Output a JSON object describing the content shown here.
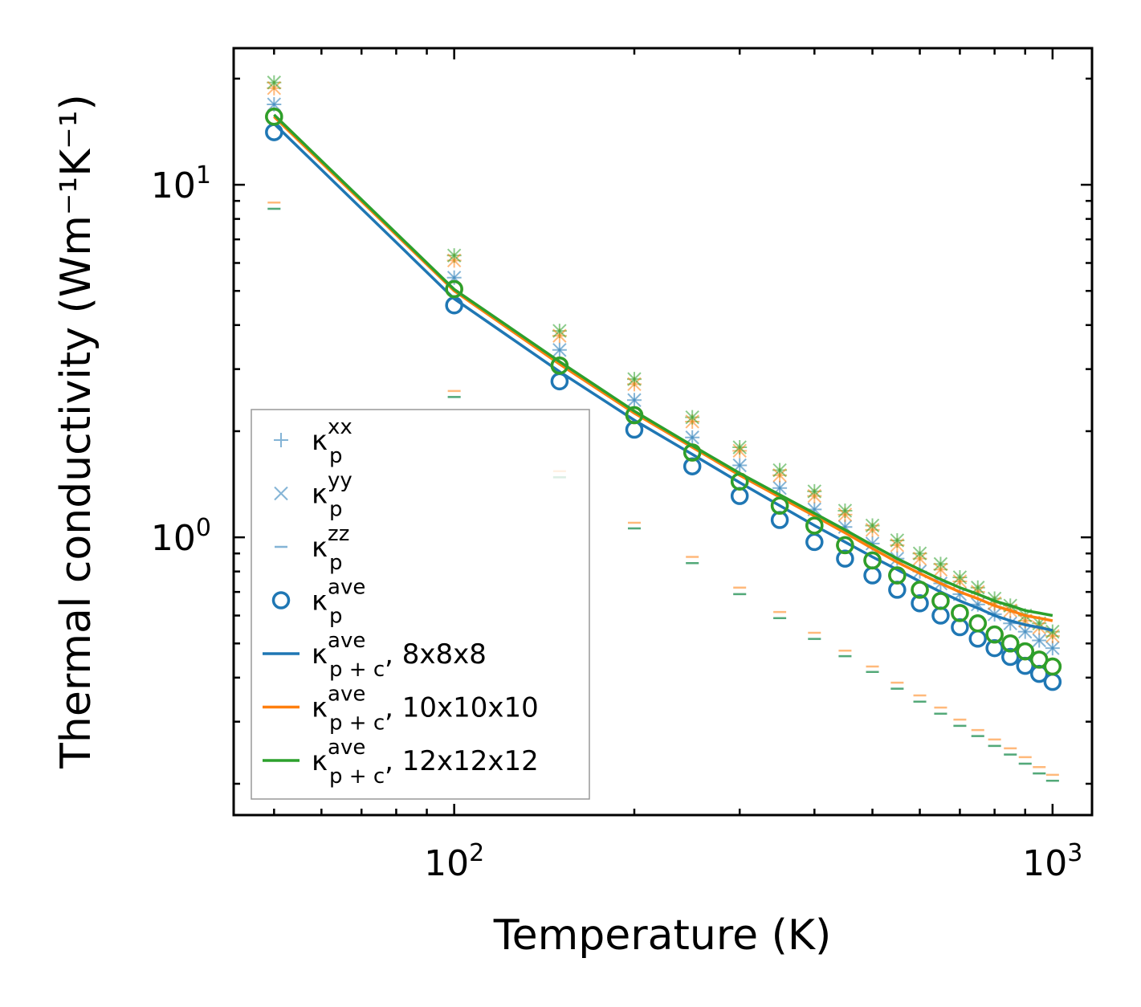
{
  "chart_data": {
    "type": "scatter",
    "title": "",
    "xlabel": "Temperature (K)",
    "ylabel": "Thermal conductivity (Wm⁻¹K⁻¹)",
    "xscale": "log",
    "yscale": "log",
    "xlim": [
      42.8,
      1164
    ],
    "ylim": [
      0.163,
      24.4
    ],
    "xticks": [
      {
        "value": 100,
        "base": "10",
        "exp": "2"
      },
      {
        "value": 1000,
        "base": "10",
        "exp": "3"
      }
    ],
    "yticks": [
      {
        "value": 1,
        "base": "10",
        "exp": "0"
      },
      {
        "value": 10,
        "base": "10",
        "exp": "1"
      }
    ],
    "legend_position": "lower-left",
    "colors": {
      "mesh8": "#1f77b4",
      "mesh10": "#ff7f0e",
      "mesh12": "#2ca02c"
    },
    "x": [
      50,
      100,
      150,
      200,
      250,
      300,
      350,
      400,
      450,
      500,
      550,
      600,
      650,
      700,
      750,
      800,
      850,
      900,
      950,
      1000
    ],
    "series": [
      {
        "name": "kxx_8",
        "mesh": "mesh8",
        "marker": "plus",
        "values": [
          16.9,
          5.45,
          3.4,
          2.45,
          1.92,
          1.6,
          1.38,
          1.2,
          1.07,
          0.96,
          0.87,
          0.8,
          0.74,
          0.69,
          0.645,
          0.605,
          0.57,
          0.54,
          0.51,
          0.485
        ]
      },
      {
        "name": "kyy_8",
        "mesh": "mesh8",
        "marker": "x",
        "values": [
          16.9,
          5.45,
          3.4,
          2.45,
          1.92,
          1.6,
          1.38,
          1.2,
          1.07,
          0.96,
          0.87,
          0.8,
          0.74,
          0.69,
          0.645,
          0.605,
          0.57,
          0.54,
          0.51,
          0.485
        ]
      },
      {
        "name": "kzz_8",
        "mesh": "mesh8",
        "marker": "dash",
        "values": [
          8.55,
          2.5,
          1.48,
          1.06,
          0.845,
          0.69,
          0.59,
          0.515,
          0.46,
          0.415,
          0.372,
          0.342,
          0.316,
          0.292,
          0.273,
          0.256,
          0.242,
          0.228,
          0.214,
          0.204
        ]
      },
      {
        "name": "kxx_10",
        "mesh": "mesh10",
        "marker": "plus",
        "values": [
          18.8,
          6.1,
          3.73,
          2.72,
          2.13,
          1.76,
          1.5,
          1.31,
          1.16,
          1.05,
          0.95,
          0.87,
          0.81,
          0.75,
          0.7,
          0.65,
          0.62,
          0.58,
          0.555,
          0.525
        ]
      },
      {
        "name": "kyy_10",
        "mesh": "mesh10",
        "marker": "x",
        "values": [
          18.8,
          6.1,
          3.73,
          2.72,
          2.13,
          1.76,
          1.5,
          1.31,
          1.16,
          1.05,
          0.95,
          0.87,
          0.81,
          0.75,
          0.7,
          0.65,
          0.62,
          0.58,
          0.555,
          0.525
        ]
      },
      {
        "name": "kzz_10",
        "mesh": "mesh10",
        "marker": "dash",
        "values": [
          8.9,
          2.6,
          1.54,
          1.1,
          0.88,
          0.72,
          0.614,
          0.536,
          0.477,
          0.43,
          0.387,
          0.356,
          0.329,
          0.304,
          0.284,
          0.267,
          0.252,
          0.238,
          0.223,
          0.212
        ]
      },
      {
        "name": "kxx_12",
        "mesh": "mesh12",
        "marker": "plus",
        "values": [
          19.5,
          6.3,
          3.85,
          2.81,
          2.19,
          1.8,
          1.55,
          1.35,
          1.19,
          1.08,
          0.98,
          0.9,
          0.84,
          0.77,
          0.72,
          0.67,
          0.64,
          0.6,
          0.57,
          0.54
        ]
      },
      {
        "name": "kyy_12",
        "mesh": "mesh12",
        "marker": "x",
        "values": [
          19.5,
          6.3,
          3.85,
          2.81,
          2.19,
          1.8,
          1.55,
          1.35,
          1.19,
          1.08,
          0.98,
          0.9,
          0.84,
          0.77,
          0.72,
          0.67,
          0.64,
          0.6,
          0.57,
          0.54
        ]
      },
      {
        "name": "kzz_12",
        "mesh": "mesh12",
        "marker": "dash",
        "values": [
          8.55,
          2.5,
          1.48,
          1.06,
          0.845,
          0.69,
          0.59,
          0.515,
          0.46,
          0.415,
          0.372,
          0.342,
          0.316,
          0.292,
          0.273,
          0.256,
          0.242,
          0.228,
          0.214,
          0.204
        ]
      },
      {
        "name": "kave_8",
        "mesh": "mesh8",
        "marker": "circle",
        "values": [
          14.1,
          4.55,
          2.77,
          2.02,
          1.59,
          1.31,
          1.12,
          0.97,
          0.87,
          0.78,
          0.71,
          0.65,
          0.6,
          0.556,
          0.516,
          0.485,
          0.458,
          0.432,
          0.41,
          0.389
        ]
      },
      {
        "name": "kave_10",
        "mesh": "mesh10",
        "marker": "circle",
        "values": [
          15.6,
          5.06,
          3.07,
          2.22,
          1.74,
          1.44,
          1.23,
          1.08,
          0.95,
          0.86,
          0.78,
          0.71,
          0.66,
          0.61,
          0.57,
          0.53,
          0.5,
          0.475,
          0.45,
          0.43
        ]
      },
      {
        "name": "kave_12",
        "mesh": "mesh12",
        "marker": "circle",
        "values": [
          15.6,
          5.06,
          3.07,
          2.22,
          1.74,
          1.44,
          1.23,
          1.08,
          0.95,
          0.86,
          0.78,
          0.71,
          0.66,
          0.61,
          0.57,
          0.53,
          0.5,
          0.475,
          0.45,
          0.43
        ]
      },
      {
        "name": "kpc_8",
        "mesh": "mesh8",
        "marker": "line",
        "values": [
          14.9,
          4.75,
          2.95,
          2.15,
          1.72,
          1.43,
          1.23,
          1.08,
          0.97,
          0.88,
          0.81,
          0.75,
          0.7,
          0.66,
          0.63,
          0.6,
          0.58,
          0.565,
          0.555,
          0.545
        ]
      },
      {
        "name": "kpc_10",
        "mesh": "mesh10",
        "marker": "line",
        "values": [
          15.6,
          5.0,
          3.1,
          2.25,
          1.8,
          1.5,
          1.3,
          1.15,
          1.03,
          0.93,
          0.85,
          0.79,
          0.74,
          0.7,
          0.67,
          0.64,
          0.62,
          0.6,
          0.59,
          0.58
        ]
      },
      {
        "name": "kpc_12",
        "mesh": "mesh12",
        "marker": "line",
        "values": [
          15.8,
          5.05,
          3.15,
          2.28,
          1.82,
          1.52,
          1.32,
          1.17,
          1.05,
          0.95,
          0.87,
          0.81,
          0.76,
          0.72,
          0.69,
          0.66,
          0.64,
          0.62,
          0.61,
          0.6
        ]
      }
    ],
    "legend": [
      {
        "marker": "plus",
        "mesh": "mesh8",
        "base": "κ",
        "sub": "p",
        "sup": "xx",
        "suffix": ""
      },
      {
        "marker": "x",
        "mesh": "mesh8",
        "base": "κ",
        "sub": "p",
        "sup": "yy",
        "suffix": ""
      },
      {
        "marker": "dash",
        "mesh": "mesh8",
        "base": "κ",
        "sub": "p",
        "sup": "zz",
        "suffix": ""
      },
      {
        "marker": "circle",
        "mesh": "mesh8",
        "base": "κ",
        "sub": "p",
        "sup": "ave",
        "suffix": ""
      },
      {
        "marker": "line",
        "mesh": "mesh8",
        "base": "κ",
        "sub": "p + c",
        "sup": "ave",
        "suffix": ", 8x8x8"
      },
      {
        "marker": "line",
        "mesh": "mesh10",
        "base": "κ",
        "sub": "p + c",
        "sup": "ave",
        "suffix": ", 10x10x10"
      },
      {
        "marker": "line",
        "mesh": "mesh12",
        "base": "κ",
        "sub": "p + c",
        "sup": "ave",
        "suffix": ", 12x12x12"
      }
    ]
  }
}
